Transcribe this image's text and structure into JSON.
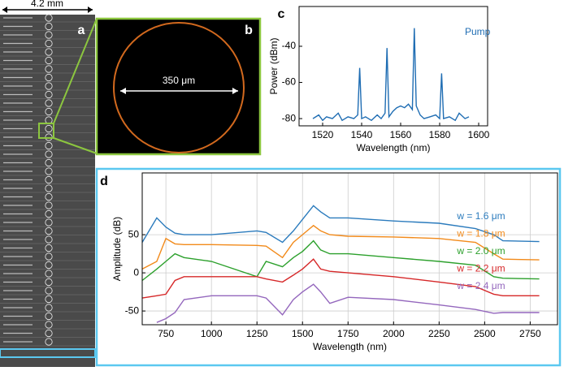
{
  "figure": {
    "panel_labels": [
      "a",
      "b",
      "c",
      "d"
    ],
    "scale_bar": "4.2 mm",
    "ring_diameter": "350 μm"
  },
  "chart_data": [
    {
      "type": "line",
      "xlabel": "Wavelength (nm)",
      "ylabel": "Power (dBm)",
      "annotation": "Pump",
      "x": [
        1515,
        1518,
        1520,
        1522,
        1525,
        1528,
        1530,
        1533,
        1536,
        1538,
        1539,
        1540,
        1542,
        1545,
        1548,
        1550,
        1552,
        1553,
        1554,
        1556,
        1558,
        1560,
        1562,
        1564,
        1566,
        1567,
        1568,
        1570,
        1572,
        1575,
        1578,
        1580,
        1581,
        1582,
        1585,
        1588,
        1590,
        1593,
        1595
      ],
      "series": [
        {
          "color": "#1f6db3",
          "values": [
            -80,
            -78,
            -81,
            -79,
            -80,
            -77,
            -81,
            -79,
            -80,
            -78,
            -52,
            -80,
            -79,
            -81,
            -78,
            -80,
            -77,
            -41,
            -79,
            -76,
            -74,
            -73,
            -74,
            -72,
            -75,
            -30,
            -73,
            -78,
            -80,
            -79,
            -78,
            -80,
            -55,
            -80,
            -79,
            -81,
            -77,
            -80,
            -79
          ]
        }
      ],
      "xlim": [
        1510,
        1600
      ],
      "ylim": [
        -84,
        -18
      ],
      "xticks": [
        1520,
        1540,
        1560,
        1580,
        1600
      ],
      "yticks": [
        -80,
        -60,
        -40
      ],
      "grid": false
    },
    {
      "type": "line",
      "xlabel": "Wavelength (nm)",
      "ylabel": "Amplitude (dB)",
      "x": [
        620,
        700,
        750,
        800,
        850,
        1000,
        1250,
        1300,
        1390,
        1450,
        1500,
        1560,
        1600,
        1650,
        1750,
        2000,
        2250,
        2450,
        2550,
        2600,
        2800
      ],
      "series": [
        {
          "name": "w = 1.6 μm",
          "color": "#2b7bbd",
          "values": [
            40,
            72,
            60,
            52,
            50,
            50,
            55,
            53,
            40,
            55,
            70,
            88,
            80,
            72,
            72,
            68,
            65,
            58,
            50,
            42,
            41
          ]
        },
        {
          "name": "w = 1.8 μm",
          "color": "#f28a1a",
          "values": [
            5,
            15,
            45,
            38,
            37,
            37,
            36,
            35,
            20,
            40,
            50,
            62,
            55,
            50,
            48,
            47,
            45,
            40,
            25,
            18,
            17
          ]
        },
        {
          "name": "w = 2.0 μm",
          "color": "#2ca02c",
          "values": [
            -10,
            5,
            15,
            25,
            20,
            15,
            -5,
            15,
            8,
            20,
            28,
            42,
            30,
            25,
            25,
            20,
            15,
            10,
            -5,
            -7,
            -8
          ]
        },
        {
          "name": "w = 2.2 μm",
          "color": "#d62728",
          "values": [
            -33,
            -30,
            -28,
            -10,
            -5,
            -5,
            -5,
            -8,
            -12,
            -3,
            5,
            18,
            5,
            2,
            0,
            -5,
            -12,
            -18,
            -28,
            -30,
            -30
          ]
        },
        {
          "name": "w = 2.4 μm",
          "color": "#9467bd",
          "values": [
            null,
            -65,
            -60,
            -52,
            -35,
            -30,
            -30,
            -33,
            -55,
            -35,
            -25,
            -15,
            -25,
            -40,
            -32,
            -35,
            -42,
            -48,
            -53,
            -52,
            -52
          ]
        }
      ],
      "xlim": [
        620,
        2900
      ],
      "ylim": [
        -68,
        131
      ],
      "xticks": [
        750,
        1000,
        1250,
        1500,
        1750,
        2000,
        2250,
        2500,
        2750
      ],
      "yticks": [
        -50,
        0,
        50
      ],
      "grid": true
    }
  ]
}
